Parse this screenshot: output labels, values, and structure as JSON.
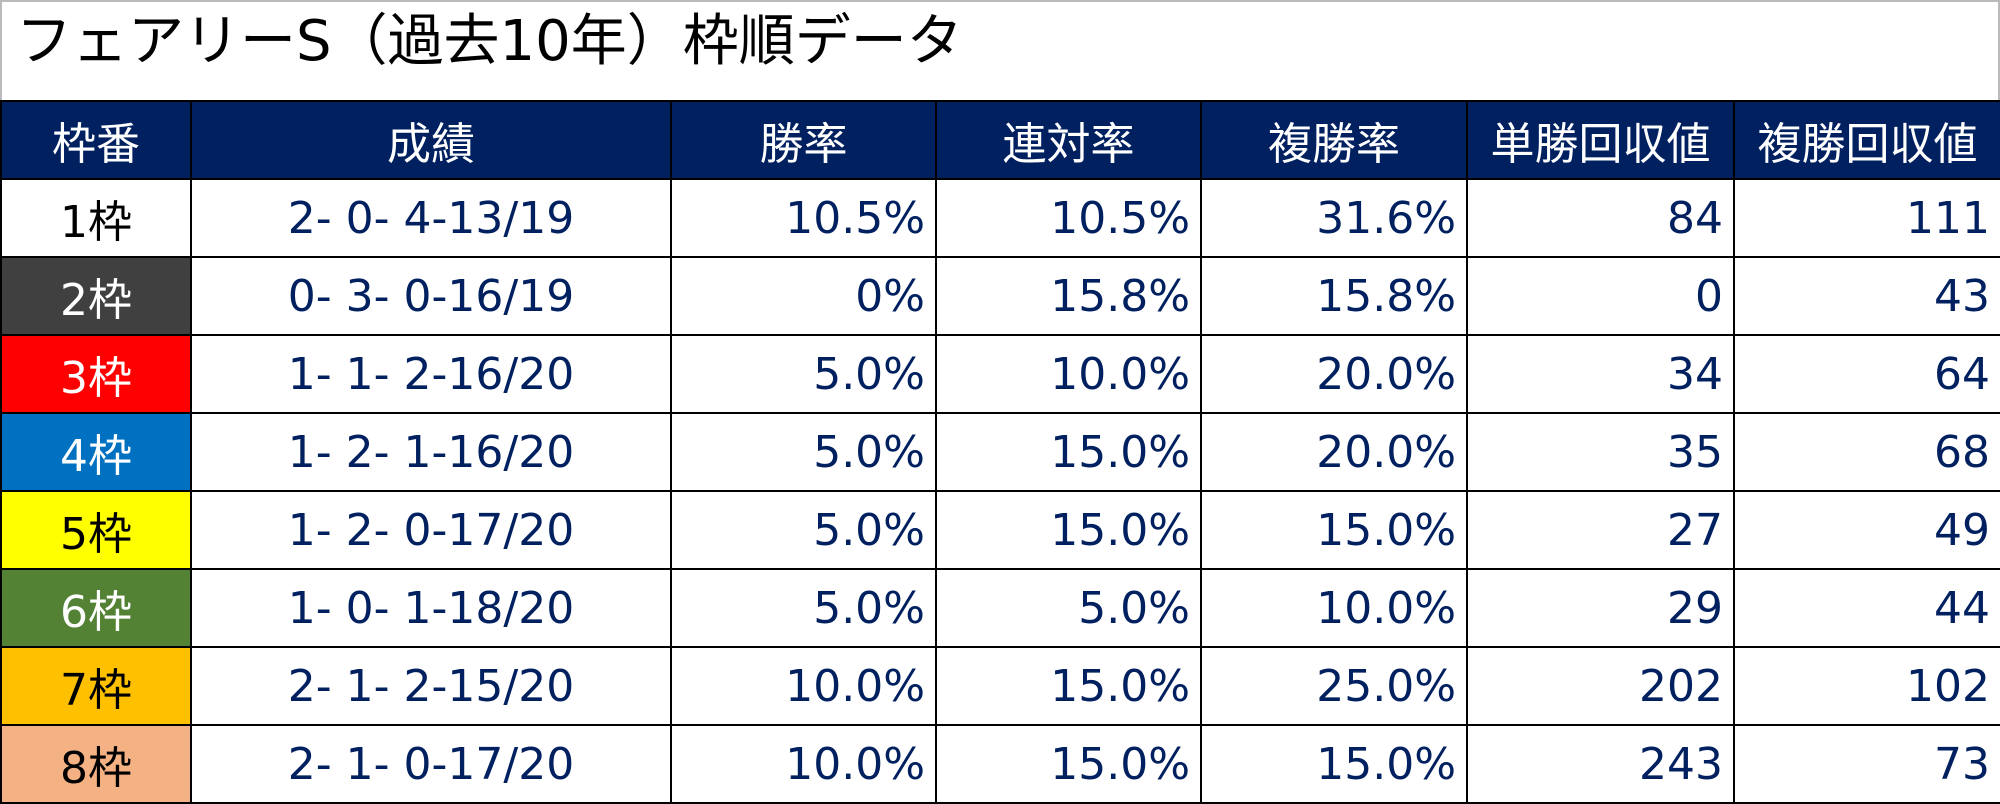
{
  "title": "フェアリーS（過去10年）枠順データ",
  "headers": [
    "枠番",
    "成績",
    "勝率",
    "連対率",
    "複勝率",
    "単勝回収値",
    "複勝回収値"
  ],
  "rows": [
    {
      "frame": "1枠",
      "bg": "#ffffff",
      "fg": "#000000",
      "record": "2- 0- 4-13/19",
      "win": "10.5%",
      "place2": "10.5%",
      "place3": "31.6%",
      "win_return": "84",
      "place_return": "111"
    },
    {
      "frame": "2枠",
      "bg": "#404040",
      "fg": "#ffffff",
      "record": "0- 3- 0-16/19",
      "win": "0%",
      "place2": "15.8%",
      "place3": "15.8%",
      "win_return": "0",
      "place_return": "43"
    },
    {
      "frame": "3枠",
      "bg": "#ff0000",
      "fg": "#ffffff",
      "record": "1- 1- 2-16/20",
      "win": "5.0%",
      "place2": "10.0%",
      "place3": "20.0%",
      "win_return": "34",
      "place_return": "64"
    },
    {
      "frame": "4枠",
      "bg": "#0070c0",
      "fg": "#ffffff",
      "record": "1- 2- 1-16/20",
      "win": "5.0%",
      "place2": "15.0%",
      "place3": "20.0%",
      "win_return": "35",
      "place_return": "68"
    },
    {
      "frame": "5枠",
      "bg": "#ffff00",
      "fg": "#000000",
      "record": "1- 2- 0-17/20",
      "win": "5.0%",
      "place2": "15.0%",
      "place3": "15.0%",
      "win_return": "27",
      "place_return": "49"
    },
    {
      "frame": "6枠",
      "bg": "#548235",
      "fg": "#ffffff",
      "record": "1- 0- 1-18/20",
      "win": "5.0%",
      "place2": "5.0%",
      "place3": "10.0%",
      "win_return": "29",
      "place_return": "44"
    },
    {
      "frame": "7枠",
      "bg": "#ffc000",
      "fg": "#000000",
      "record": "2- 1- 2-15/20",
      "win": "10.0%",
      "place2": "15.0%",
      "place3": "25.0%",
      "win_return": "202",
      "place_return": "102"
    },
    {
      "frame": "8枠",
      "bg": "#f4b183",
      "fg": "#000000",
      "record": "2- 1- 0-17/20",
      "win": "10.0%",
      "place2": "15.0%",
      "place3": "15.0%",
      "win_return": "243",
      "place_return": "73"
    }
  ]
}
